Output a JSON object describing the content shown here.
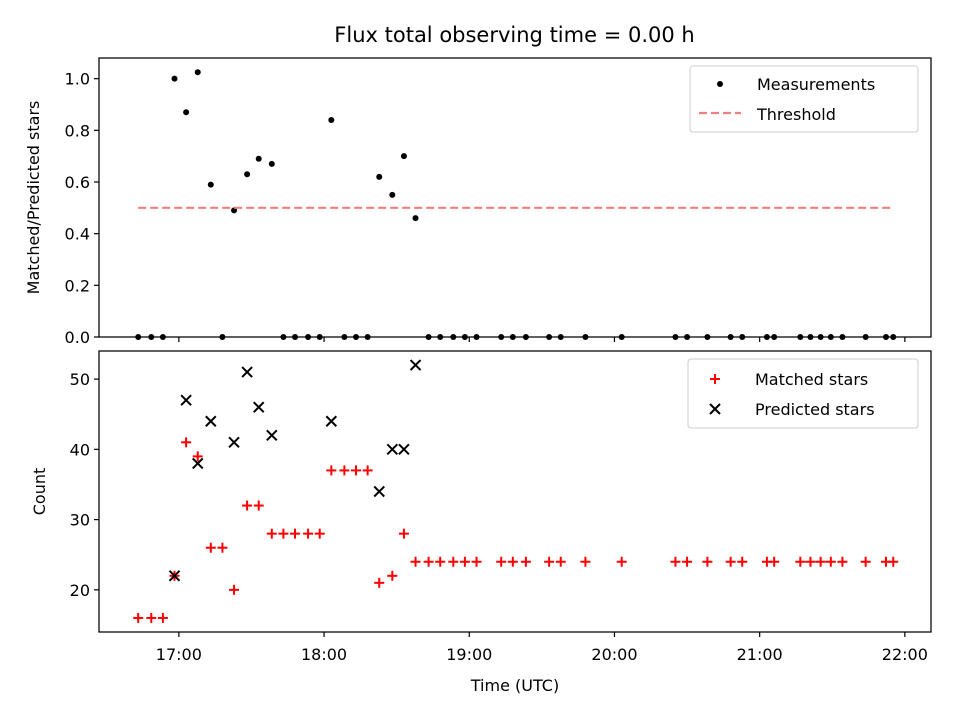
{
  "title": "Flux total observing time = 0.00 h",
  "x_axis": {
    "label": "Time (UTC)",
    "ticks": [
      {
        "hour": 17,
        "label": "17:00"
      },
      {
        "hour": 18,
        "label": "18:00"
      },
      {
        "hour": 19,
        "label": "19:00"
      },
      {
        "hour": 20,
        "label": "20:00"
      },
      {
        "hour": 21,
        "label": "21:00"
      },
      {
        "hour": 22,
        "label": "22:00"
      }
    ]
  },
  "colors": {
    "matched": "#ff0000",
    "predicted": "#000000",
    "measurements": "#000000",
    "threshold": "#f08080"
  },
  "chart_data": [
    {
      "type": "scatter",
      "ylabel": "Matched/Predicted stars",
      "xlim": [
        16.45,
        22.18
      ],
      "ylim": [
        0.0,
        1.08
      ],
      "yticks": [
        "0.0",
        "0.2",
        "0.4",
        "0.6",
        "0.8",
        "1.0"
      ],
      "legend_position": "top-right",
      "series": [
        {
          "name": "Measurements",
          "marker": "dot",
          "x": [
            16.72,
            16.81,
            16.89,
            16.97,
            17.05,
            17.13,
            17.22,
            17.3,
            17.38,
            17.47,
            17.55,
            17.64,
            17.72,
            17.8,
            17.89,
            17.97,
            18.05,
            18.14,
            18.22,
            18.3,
            18.38,
            18.47,
            18.55,
            18.63,
            18.72,
            18.8,
            18.89,
            18.97,
            19.05,
            19.22,
            19.3,
            19.39,
            19.55,
            19.63,
            19.8,
            20.05,
            20.42,
            20.5,
            20.64,
            20.8,
            20.88,
            21.05,
            21.1,
            21.28,
            21.35,
            21.42,
            21.49,
            21.57,
            21.73,
            21.87,
            21.92
          ],
          "y": [
            0.0,
            0.0,
            0.0,
            1.0,
            0.87,
            1.025,
            0.59,
            0.0,
            0.49,
            0.63,
            0.69,
            0.67,
            0.0,
            0.0,
            0.0,
            0.0,
            0.84,
            0.0,
            0.0,
            0.0,
            0.62,
            0.55,
            0.7,
            0.46,
            0.0,
            0.0,
            0.0,
            0.0,
            0.0,
            0.0,
            0.0,
            0.0,
            0.0,
            0.0,
            0.0,
            0.0,
            0.0,
            0.0,
            0.0,
            0.0,
            0.0,
            0.0,
            0.0,
            0.0,
            0.0,
            0.0,
            0.0,
            0.0,
            0.0,
            0.0,
            0.0
          ]
        },
        {
          "name": "Threshold",
          "style": "dashed-line",
          "x": [
            16.72,
            21.92
          ],
          "y": [
            0.5,
            0.5
          ]
        }
      ]
    },
    {
      "type": "scatter",
      "ylabel": "Count",
      "xlabel": "Time (UTC)",
      "xlim": [
        16.45,
        22.18
      ],
      "ylim": [
        14.0,
        54.0
      ],
      "yticks": [
        "20",
        "30",
        "40",
        "50"
      ],
      "legend_position": "top-right",
      "series": [
        {
          "name": "Matched stars",
          "marker": "plus",
          "x": [
            16.72,
            16.81,
            16.89,
            16.97,
            17.05,
            17.13,
            17.22,
            17.3,
            17.38,
            17.47,
            17.55,
            17.64,
            17.72,
            17.8,
            17.89,
            17.97,
            18.05,
            18.14,
            18.22,
            18.3,
            18.38,
            18.47,
            18.55,
            18.63,
            18.72,
            18.8,
            18.89,
            18.97,
            19.05,
            19.22,
            19.3,
            19.39,
            19.55,
            19.63,
            19.8,
            20.05,
            20.42,
            20.5,
            20.64,
            20.8,
            20.88,
            21.05,
            21.1,
            21.28,
            21.35,
            21.42,
            21.49,
            21.57,
            21.73,
            21.87,
            21.92
          ],
          "y": [
            16,
            16,
            16,
            22,
            41,
            39,
            26,
            26,
            20,
            32,
            32,
            28,
            28,
            28,
            28,
            28,
            37,
            37,
            37,
            37,
            21,
            22,
            28,
            24,
            24,
            24,
            24,
            24,
            24,
            24,
            24,
            24,
            24,
            24,
            24,
            24,
            24,
            24,
            24,
            24,
            24,
            24,
            24,
            24,
            24,
            24,
            24,
            24,
            24,
            24,
            24
          ]
        },
        {
          "name": "Predicted stars",
          "marker": "x",
          "x": [
            16.97,
            17.05,
            17.13,
            17.22,
            17.38,
            17.47,
            17.55,
            17.64,
            18.05,
            18.38,
            18.47,
            18.55,
            18.63
          ],
          "y": [
            22,
            47,
            38,
            44,
            41,
            51,
            46,
            42,
            44,
            34,
            40,
            40,
            52
          ]
        }
      ]
    }
  ]
}
